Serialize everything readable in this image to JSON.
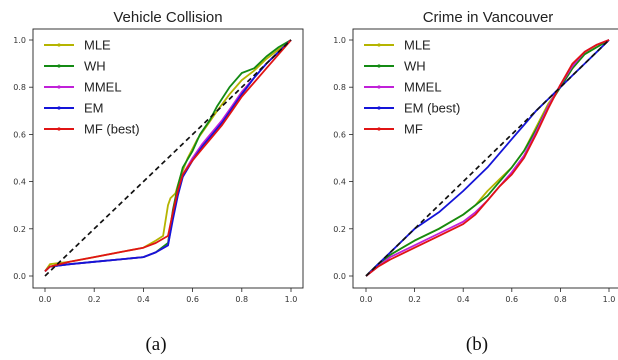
{
  "panels": [
    {
      "caption": "(a)",
      "chart_data": {
        "type": "line",
        "title": "Vehicle Collision",
        "xlim": [
          0,
          1
        ],
        "ylim": [
          0,
          1
        ],
        "xticks": [
          "0.0",
          "0.2",
          "0.4",
          "0.6",
          "0.8",
          "1.0"
        ],
        "yticks": [
          "0.0",
          "0.2",
          "0.4",
          "0.6",
          "0.8",
          "1.0"
        ],
        "legend_position": "top-left",
        "reference_line": {
          "x": [
            0,
            1
          ],
          "y": [
            0,
            1
          ],
          "style": "dashed",
          "color": "#111111"
        },
        "series": [
          {
            "name": "MLE",
            "color": "#b5b400",
            "x": [
              0,
              0.02,
              0.1,
              0.2,
              0.3,
              0.4,
              0.45,
              0.48,
              0.5,
              0.51,
              0.53,
              0.55,
              0.58,
              0.62,
              0.66,
              0.7,
              0.75,
              0.8,
              0.85,
              0.9,
              0.95,
              1.0
            ],
            "y": [
              0.02,
              0.05,
              0.06,
              0.08,
              0.1,
              0.12,
              0.15,
              0.17,
              0.3,
              0.33,
              0.35,
              0.42,
              0.5,
              0.58,
              0.64,
              0.7,
              0.77,
              0.83,
              0.87,
              0.92,
              0.96,
              1.0
            ]
          },
          {
            "name": "WH",
            "color": "#138a13",
            "x": [
              0,
              0.02,
              0.1,
              0.2,
              0.3,
              0.4,
              0.45,
              0.5,
              0.52,
              0.54,
              0.56,
              0.6,
              0.63,
              0.67,
              0.7,
              0.75,
              0.8,
              0.85,
              0.9,
              0.95,
              1.0
            ],
            "y": [
              0.02,
              0.04,
              0.05,
              0.06,
              0.07,
              0.08,
              0.1,
              0.14,
              0.28,
              0.38,
              0.46,
              0.53,
              0.6,
              0.66,
              0.72,
              0.8,
              0.86,
              0.88,
              0.93,
              0.97,
              1.0
            ]
          },
          {
            "name": "MMEL",
            "color": "#c020d8",
            "x": [
              0,
              0.02,
              0.1,
              0.2,
              0.3,
              0.4,
              0.45,
              0.5,
              0.52,
              0.54,
              0.56,
              0.6,
              0.64,
              0.68,
              0.72,
              0.76,
              0.8,
              0.85,
              0.9,
              0.95,
              1.0
            ],
            "y": [
              0.02,
              0.04,
              0.05,
              0.06,
              0.07,
              0.08,
              0.1,
              0.13,
              0.25,
              0.36,
              0.43,
              0.5,
              0.56,
              0.61,
              0.66,
              0.72,
              0.78,
              0.84,
              0.9,
              0.95,
              1.0
            ]
          },
          {
            "name": "EM",
            "color": "#1414d8",
            "x": [
              0,
              0.02,
              0.1,
              0.2,
              0.3,
              0.4,
              0.45,
              0.5,
              0.52,
              0.54,
              0.56,
              0.6,
              0.64,
              0.68,
              0.72,
              0.76,
              0.8,
              0.85,
              0.9,
              0.95,
              1.0
            ],
            "y": [
              0.02,
              0.04,
              0.05,
              0.06,
              0.07,
              0.08,
              0.1,
              0.13,
              0.24,
              0.34,
              0.42,
              0.49,
              0.55,
              0.6,
              0.65,
              0.71,
              0.77,
              0.84,
              0.9,
              0.95,
              1.0
            ]
          },
          {
            "name": "MF (best)",
            "color": "#e01414",
            "x": [
              0,
              0.02,
              0.1,
              0.2,
              0.3,
              0.4,
              0.45,
              0.5,
              0.52,
              0.54,
              0.56,
              0.6,
              0.64,
              0.68,
              0.72,
              0.76,
              0.8,
              0.85,
              0.9,
              0.95,
              1.0
            ],
            "y": [
              0.02,
              0.04,
              0.06,
              0.08,
              0.1,
              0.12,
              0.14,
              0.17,
              0.27,
              0.36,
              0.43,
              0.49,
              0.54,
              0.59,
              0.64,
              0.7,
              0.76,
              0.82,
              0.88,
              0.94,
              1.0
            ]
          }
        ]
      }
    },
    {
      "caption": "(b)",
      "chart_data": {
        "type": "line",
        "title": "Crime in Vancouver",
        "xlim": [
          0,
          1
        ],
        "ylim": [
          0,
          1
        ],
        "xticks": [
          "0.0",
          "0.2",
          "0.4",
          "0.6",
          "0.8",
          "1.0"
        ],
        "yticks": [
          "0.0",
          "0.2",
          "0.4",
          "0.6",
          "0.8",
          "1.0"
        ],
        "legend_position": "top-left",
        "reference_line": {
          "x": [
            0,
            1
          ],
          "y": [
            0,
            1
          ],
          "style": "dashed",
          "color": "#111111"
        },
        "series": [
          {
            "name": "MLE",
            "color": "#b5b400",
            "x": [
              0,
              0.05,
              0.1,
              0.2,
              0.3,
              0.4,
              0.45,
              0.5,
              0.55,
              0.6,
              0.65,
              0.7,
              0.75,
              0.8,
              0.85,
              0.9,
              0.95,
              1.0
            ],
            "y": [
              0,
              0.05,
              0.09,
              0.15,
              0.2,
              0.26,
              0.3,
              0.36,
              0.41,
              0.46,
              0.53,
              0.63,
              0.73,
              0.8,
              0.88,
              0.94,
              0.97,
              1.0
            ]
          },
          {
            "name": "WH",
            "color": "#138a13",
            "x": [
              0,
              0.05,
              0.1,
              0.2,
              0.3,
              0.4,
              0.45,
              0.5,
              0.55,
              0.6,
              0.65,
              0.7,
              0.75,
              0.8,
              0.85,
              0.9,
              0.95,
              1.0
            ],
            "y": [
              0,
              0.05,
              0.09,
              0.15,
              0.2,
              0.26,
              0.3,
              0.34,
              0.4,
              0.46,
              0.53,
              0.62,
              0.72,
              0.8,
              0.88,
              0.94,
              0.97,
              1.0
            ]
          },
          {
            "name": "MMEL",
            "color": "#c020d8",
            "x": [
              0,
              0.05,
              0.1,
              0.2,
              0.3,
              0.4,
              0.45,
              0.5,
              0.55,
              0.6,
              0.65,
              0.7,
              0.75,
              0.8,
              0.85,
              0.9,
              0.95,
              1.0
            ],
            "y": [
              0,
              0.04,
              0.08,
              0.13,
              0.18,
              0.23,
              0.27,
              0.32,
              0.38,
              0.44,
              0.51,
              0.61,
              0.72,
              0.81,
              0.89,
              0.95,
              0.98,
              1.0
            ]
          },
          {
            "name": "EM (best)",
            "color": "#1414d8",
            "x": [
              0,
              0.05,
              0.1,
              0.15,
              0.2,
              0.3,
              0.4,
              0.5,
              0.6,
              0.65,
              0.7,
              0.75,
              0.8,
              0.85,
              0.9,
              0.95,
              1.0
            ],
            "y": [
              0,
              0.05,
              0.1,
              0.15,
              0.2,
              0.27,
              0.36,
              0.46,
              0.58,
              0.64,
              0.7,
              0.75,
              0.8,
              0.85,
              0.9,
              0.95,
              1.0
            ]
          },
          {
            "name": "MF",
            "color": "#e01414",
            "x": [
              0,
              0.05,
              0.1,
              0.2,
              0.3,
              0.4,
              0.45,
              0.5,
              0.55,
              0.6,
              0.65,
              0.7,
              0.75,
              0.8,
              0.85,
              0.9,
              0.95,
              1.0
            ],
            "y": [
              0,
              0.04,
              0.07,
              0.12,
              0.17,
              0.22,
              0.26,
              0.32,
              0.38,
              0.43,
              0.5,
              0.6,
              0.71,
              0.81,
              0.9,
              0.95,
              0.98,
              1.0
            ]
          }
        ]
      }
    }
  ]
}
